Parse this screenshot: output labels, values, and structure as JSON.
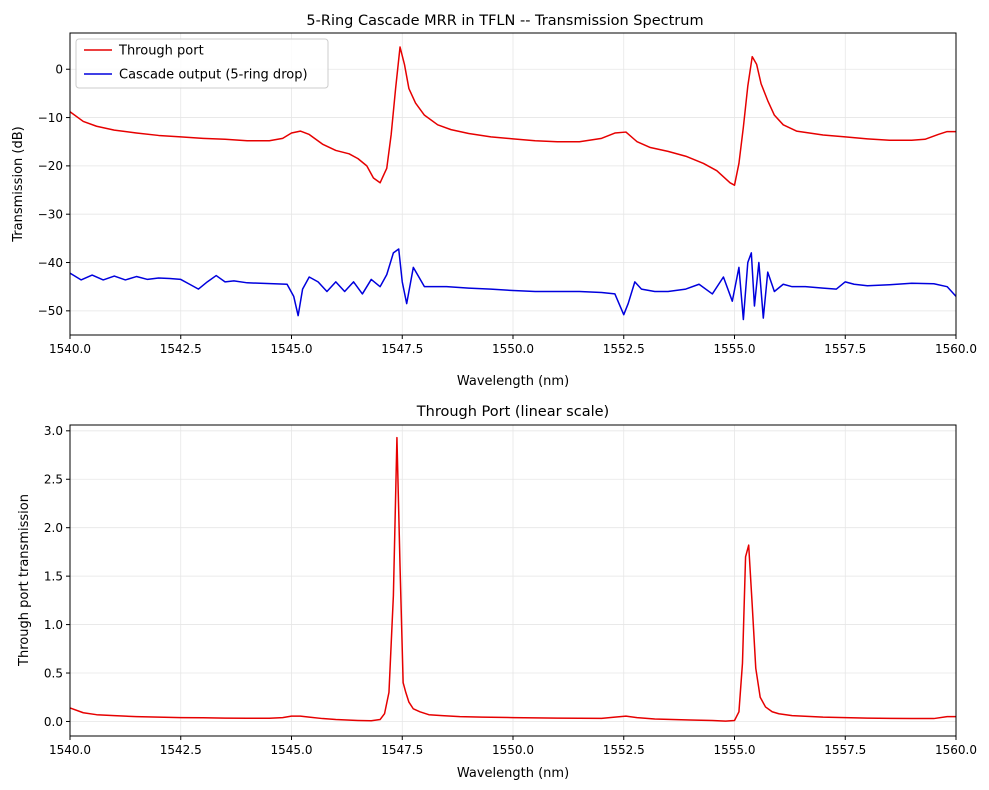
{
  "chart_data": [
    {
      "type": "line",
      "title": "5-Ring Cascade MRR in TFLN -- Transmission Spectrum",
      "xlabel": "Wavelength (nm)",
      "ylabel": "Transmission (dB)",
      "xlim": [
        1540,
        1560
      ],
      "ylim": [
        -55,
        7.5
      ],
      "xticks": [
        1540.0,
        1542.5,
        1545.0,
        1547.5,
        1550.0,
        1552.5,
        1555.0,
        1557.5,
        1560.0
      ],
      "xtick_labels": [
        "1540.0",
        "1542.5",
        "1545.0",
        "1547.5",
        "1550.0",
        "1552.5",
        "1555.0",
        "1557.5",
        "1560.0"
      ],
      "yticks": [
        0,
        -10,
        -20,
        -30,
        -40,
        -50
      ],
      "ytick_labels": [
        "0",
        "−10",
        "−20",
        "−30",
        "−40",
        "−50"
      ],
      "grid": true,
      "legend_position": "top-left",
      "series": [
        {
          "name": "Through port",
          "color": "#e60000",
          "x": [
            1540.0,
            1540.3,
            1540.6,
            1541.0,
            1541.5,
            1542.0,
            1542.5,
            1543.0,
            1543.5,
            1544.0,
            1544.5,
            1544.8,
            1545.0,
            1545.2,
            1545.4,
            1545.7,
            1546.0,
            1546.3,
            1546.5,
            1546.7,
            1546.85,
            1547.0,
            1547.15,
            1547.25,
            1547.35,
            1547.45,
            1547.55,
            1547.65,
            1547.8,
            1548.0,
            1548.3,
            1548.6,
            1549.0,
            1549.5,
            1550.0,
            1550.5,
            1551.0,
            1551.5,
            1552.0,
            1552.3,
            1552.55,
            1552.8,
            1553.1,
            1553.5,
            1553.9,
            1554.3,
            1554.6,
            1554.9,
            1555.0,
            1555.1,
            1555.2,
            1555.3,
            1555.4,
            1555.5,
            1555.6,
            1555.75,
            1555.9,
            1556.1,
            1556.4,
            1557.0,
            1557.5,
            1558.0,
            1558.5,
            1559.0,
            1559.3,
            1559.6,
            1559.8,
            1560.0
          ],
          "values": [
            -8.8,
            -10.8,
            -11.8,
            -12.6,
            -13.2,
            -13.7,
            -14.0,
            -14.3,
            -14.5,
            -14.8,
            -14.8,
            -14.3,
            -13.2,
            -12.8,
            -13.5,
            -15.5,
            -16.8,
            -17.5,
            -18.5,
            -20.0,
            -22.5,
            -23.5,
            -20.5,
            -13.5,
            -4.0,
            4.6,
            1.0,
            -4.0,
            -7.0,
            -9.5,
            -11.5,
            -12.5,
            -13.3,
            -14.0,
            -14.4,
            -14.8,
            -15.0,
            -15.0,
            -14.3,
            -13.2,
            -13.0,
            -15.0,
            -16.2,
            -17.0,
            -18.0,
            -19.5,
            -21.0,
            -23.5,
            -24.0,
            -19.5,
            -12.0,
            -3.5,
            2.6,
            1.0,
            -3.0,
            -6.5,
            -9.5,
            -11.5,
            -12.8,
            -13.6,
            -14.0,
            -14.4,
            -14.7,
            -14.7,
            -14.5,
            -13.5,
            -12.9,
            -12.9
          ]
        },
        {
          "name": "Cascade output (5-ring drop)",
          "color": "#0000dd",
          "x": [
            1540.0,
            1540.25,
            1540.5,
            1540.75,
            1541.0,
            1541.25,
            1541.5,
            1541.75,
            1542.0,
            1542.25,
            1542.5,
            1542.7,
            1542.9,
            1543.1,
            1543.3,
            1543.5,
            1543.7,
            1544.0,
            1544.3,
            1544.6,
            1544.9,
            1545.05,
            1545.15,
            1545.25,
            1545.4,
            1545.6,
            1545.8,
            1546.0,
            1546.2,
            1546.4,
            1546.6,
            1546.8,
            1547.0,
            1547.15,
            1547.3,
            1547.42,
            1547.5,
            1547.6,
            1547.75,
            1548.0,
            1548.5,
            1549.0,
            1549.5,
            1550.0,
            1550.5,
            1551.0,
            1551.5,
            1552.0,
            1552.3,
            1552.5,
            1552.6,
            1552.75,
            1552.9,
            1553.2,
            1553.5,
            1553.9,
            1554.2,
            1554.5,
            1554.75,
            1554.95,
            1555.1,
            1555.2,
            1555.3,
            1555.38,
            1555.45,
            1555.55,
            1555.65,
            1555.75,
            1555.9,
            1556.1,
            1556.3,
            1556.6,
            1557.0,
            1557.3,
            1557.5,
            1557.7,
            1558.0,
            1558.5,
            1559.0,
            1559.5,
            1559.8,
            1560.0
          ],
          "values": [
            -42.2,
            -43.6,
            -42.6,
            -43.6,
            -42.8,
            -43.6,
            -42.9,
            -43.5,
            -43.2,
            -43.3,
            -43.5,
            -44.5,
            -45.5,
            -44.0,
            -42.7,
            -44.0,
            -43.8,
            -44.2,
            -44.3,
            -44.4,
            -44.5,
            -47.0,
            -51.0,
            -45.5,
            -43.0,
            -44.0,
            -46.0,
            -44.0,
            -46.0,
            -44.0,
            -46.5,
            -43.5,
            -45.0,
            -42.5,
            -38.0,
            -37.2,
            -44.0,
            -48.5,
            -41.0,
            -45.0,
            -45.0,
            -45.3,
            -45.5,
            -45.8,
            -46.0,
            -46.0,
            -46.0,
            -46.2,
            -46.5,
            -50.8,
            -48.5,
            -44.0,
            -45.5,
            -46.0,
            -46.0,
            -45.5,
            -44.5,
            -46.5,
            -43.0,
            -48.0,
            -41.0,
            -51.8,
            -40.0,
            -38.0,
            -49.0,
            -40.0,
            -51.5,
            -42.0,
            -46.0,
            -44.5,
            -45.0,
            -45.0,
            -45.3,
            -45.5,
            -44.0,
            -44.5,
            -44.8,
            -44.6,
            -44.3,
            -44.4,
            -45.0,
            -47.0
          ]
        }
      ]
    },
    {
      "type": "line",
      "title": "Through Port (linear scale)",
      "xlabel": "Wavelength (nm)",
      "ylabel": "Through port transmission",
      "xlim": [
        1540,
        1560
      ],
      "ylim": [
        -0.15,
        3.06
      ],
      "xticks": [
        1540.0,
        1542.5,
        1545.0,
        1547.5,
        1550.0,
        1552.5,
        1555.0,
        1557.5,
        1560.0
      ],
      "xtick_labels": [
        "1540.0",
        "1542.5",
        "1545.0",
        "1547.5",
        "1550.0",
        "1552.5",
        "1555.0",
        "1557.5",
        "1560.0"
      ],
      "yticks": [
        0.0,
        0.5,
        1.0,
        1.5,
        2.0,
        2.5,
        3.0
      ],
      "ytick_labels": [
        "0.0",
        "0.5",
        "1.0",
        "1.5",
        "2.0",
        "2.5",
        "3.0"
      ],
      "grid": true,
      "series": [
        {
          "name": "Through port",
          "color": "#e60000",
          "x": [
            1540.0,
            1540.3,
            1540.6,
            1541.0,
            1541.5,
            1542.0,
            1542.5,
            1543.0,
            1543.5,
            1544.0,
            1544.5,
            1544.8,
            1545.0,
            1545.2,
            1545.4,
            1545.7,
            1546.0,
            1546.5,
            1546.8,
            1547.0,
            1547.1,
            1547.2,
            1547.3,
            1547.38,
            1547.45,
            1547.52,
            1547.58,
            1547.65,
            1547.75,
            1547.9,
            1548.1,
            1548.4,
            1548.8,
            1549.3,
            1550.0,
            1551.0,
            1552.0,
            1552.3,
            1552.55,
            1552.8,
            1553.2,
            1554.0,
            1554.5,
            1554.8,
            1555.0,
            1555.1,
            1555.18,
            1555.25,
            1555.32,
            1555.4,
            1555.48,
            1555.58,
            1555.7,
            1555.85,
            1556.0,
            1556.3,
            1557.0,
            1558.0,
            1559.0,
            1559.5,
            1559.8,
            1560.0
          ],
          "values": [
            0.14,
            0.09,
            0.07,
            0.06,
            0.05,
            0.045,
            0.04,
            0.038,
            0.035,
            0.033,
            0.033,
            0.04,
            0.055,
            0.055,
            0.045,
            0.03,
            0.02,
            0.01,
            0.007,
            0.02,
            0.08,
            0.3,
            1.3,
            2.93,
            1.6,
            0.4,
            0.3,
            0.2,
            0.13,
            0.1,
            0.07,
            0.06,
            0.05,
            0.045,
            0.04,
            0.035,
            0.032,
            0.045,
            0.055,
            0.04,
            0.025,
            0.015,
            0.01,
            0.004,
            0.01,
            0.1,
            0.6,
            1.7,
            1.82,
            1.2,
            0.55,
            0.25,
            0.15,
            0.1,
            0.08,
            0.06,
            0.045,
            0.035,
            0.03,
            0.03,
            0.05,
            0.05
          ]
        }
      ]
    }
  ]
}
